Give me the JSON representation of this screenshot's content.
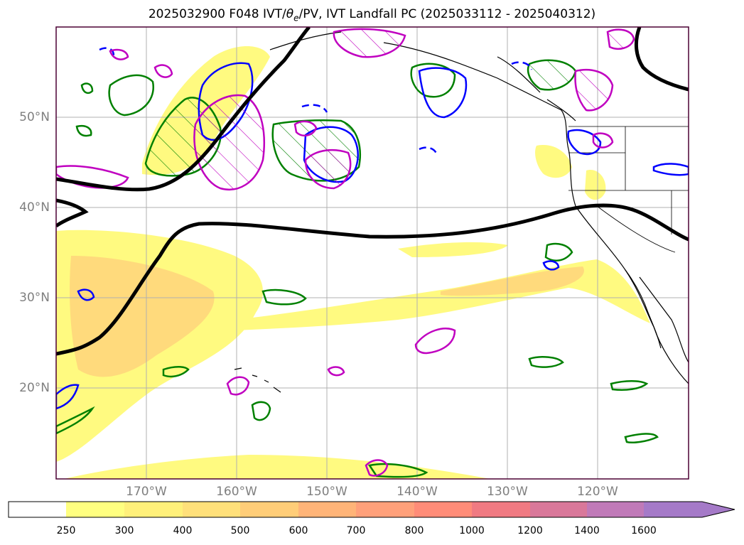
{
  "title": {
    "prefix": "2025032900 F048 IVT/",
    "theta": "θ",
    "theta_sub": "e",
    "suffix": "/PV, IVT Landfall PC (2025033112 - 2025040312)"
  },
  "lat_labels": [
    "50°N",
    "40°N",
    "30°N",
    "20°N"
  ],
  "lon_labels": [
    "170°W",
    "160°W",
    "150°W",
    "140°W",
    "130°W",
    "120°W"
  ],
  "colorbar": {
    "ticks": [
      "250",
      "300",
      "400",
      "500",
      "600",
      "700",
      "800",
      "1000",
      "1200",
      "1400",
      "1600"
    ],
    "colors": [
      "#ffffff",
      "#ffff80",
      "#fff07a",
      "#ffe07a",
      "#ffcd78",
      "#ffb478",
      "#ffa07a",
      "#ff8c78",
      "#f07a82",
      "#d9789a",
      "#c07ab8",
      "#a57ac8"
    ]
  },
  "colors": {
    "ivt_fill": "#fffa80",
    "ivt_core": "#ffd27a",
    "jet_contour": "#000000",
    "theta_contour": "#008000",
    "pv_contour": "#0000ff",
    "pc_contour": "#c000c0",
    "grid": "#b0b0b0",
    "axis_frame": "#4b0033"
  }
}
